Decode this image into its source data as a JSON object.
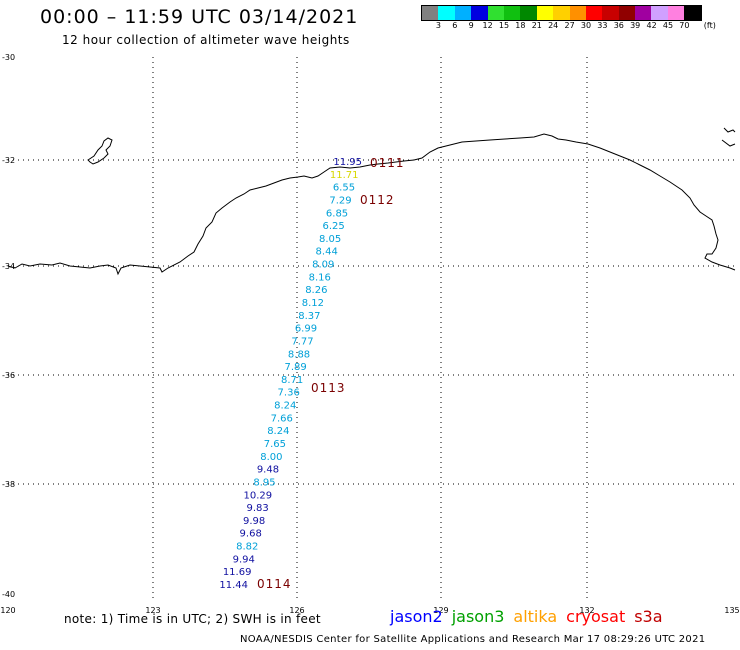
{
  "header": {
    "title": "00:00 – 11:59 UTC 03/14/2021",
    "subtitle": "12 hour collection of altimeter wave heights"
  },
  "colorbar": {
    "colors": [
      "#808080",
      "#00ffff",
      "#00b0ff",
      "#0000e0",
      "#30e030",
      "#10c010",
      "#008800",
      "#ffff00",
      "#ffd000",
      "#ff9000",
      "#ff0000",
      "#c80000",
      "#900000",
      "#a000a0",
      "#d0a0ff",
      "#ff80e0",
      "#000000"
    ],
    "labels": [
      "3",
      "6",
      "9",
      "12",
      "15",
      "18",
      "21",
      "24",
      "27",
      "30",
      "33",
      "36",
      "39",
      "42",
      "45",
      "70"
    ],
    "unit": "(ft)"
  },
  "axes": {
    "lat_labels": [
      "-30",
      "-32",
      "-34",
      "-36",
      "-38",
      "-40"
    ],
    "lon_labels": [
      "120",
      "123",
      "126",
      "129",
      "132",
      "135"
    ]
  },
  "track": [
    {
      "value": "11.95",
      "color": "#1010a0"
    },
    {
      "value": "11.71",
      "color": "#d8d800"
    },
    {
      "value": "6.55",
      "color": "#00a0d8"
    },
    {
      "value": "7.29",
      "color": "#00a0d8"
    },
    {
      "value": "6.85",
      "color": "#00a0d8"
    },
    {
      "value": "6.25",
      "color": "#00a0d8"
    },
    {
      "value": "8.05",
      "color": "#00a0d8"
    },
    {
      "value": "8.44",
      "color": "#00a0d8"
    },
    {
      "value": "8.09",
      "color": "#00a0d8"
    },
    {
      "value": "8.16",
      "color": "#00a0d8"
    },
    {
      "value": "8.26",
      "color": "#00a0d8"
    },
    {
      "value": "8.12",
      "color": "#00a0d8"
    },
    {
      "value": "8.37",
      "color": "#00a0d8"
    },
    {
      "value": "6.99",
      "color": "#00a0d8"
    },
    {
      "value": "7.77",
      "color": "#00a0d8"
    },
    {
      "value": "8.88",
      "color": "#00a0d8"
    },
    {
      "value": "7.89",
      "color": "#00a0d8"
    },
    {
      "value": "8.71",
      "color": "#00a0d8"
    },
    {
      "value": "7.36",
      "color": "#00a0d8"
    },
    {
      "value": "8.24",
      "color": "#00a0d8"
    },
    {
      "value": "7.66",
      "color": "#00a0d8"
    },
    {
      "value": "8.24",
      "color": "#00a0d8"
    },
    {
      "value": "7.65",
      "color": "#00a0d8"
    },
    {
      "value": "8.00",
      "color": "#00a0d8"
    },
    {
      "value": "9.48",
      "color": "#1010a0"
    },
    {
      "value": "8.95",
      "color": "#00a0d8"
    },
    {
      "value": "10.29",
      "color": "#1010a0"
    },
    {
      "value": "9.83",
      "color": "#1010a0"
    },
    {
      "value": "9.98",
      "color": "#1010a0"
    },
    {
      "value": "9.68",
      "color": "#1010a0"
    },
    {
      "value": "8.82",
      "color": "#00a0d8"
    },
    {
      "value": "9.94",
      "color": "#1010a0"
    },
    {
      "value": "11.69",
      "color": "#1010a0"
    },
    {
      "value": "11.44",
      "color": "#1010a0"
    }
  ],
  "pass_times": [
    "0111",
    "0112",
    "0113",
    "0114"
  ],
  "footer": {
    "note": "note: 1) Time is in UTC; 2) SWH is in feet",
    "credit": "NOAA/NESDIS Center for Satellite Applications and Research   Mar 17 08:29:26 UTC 2021",
    "satellites": [
      {
        "name": "jason2",
        "color": "#0000ff"
      },
      {
        "name": "jason3",
        "color": "#00a000"
      },
      {
        "name": "altika",
        "color": "#ffa000"
      },
      {
        "name": "cryosat",
        "color": "#ff0000"
      },
      {
        "name": "s3a",
        "color": "#c00000"
      }
    ]
  }
}
